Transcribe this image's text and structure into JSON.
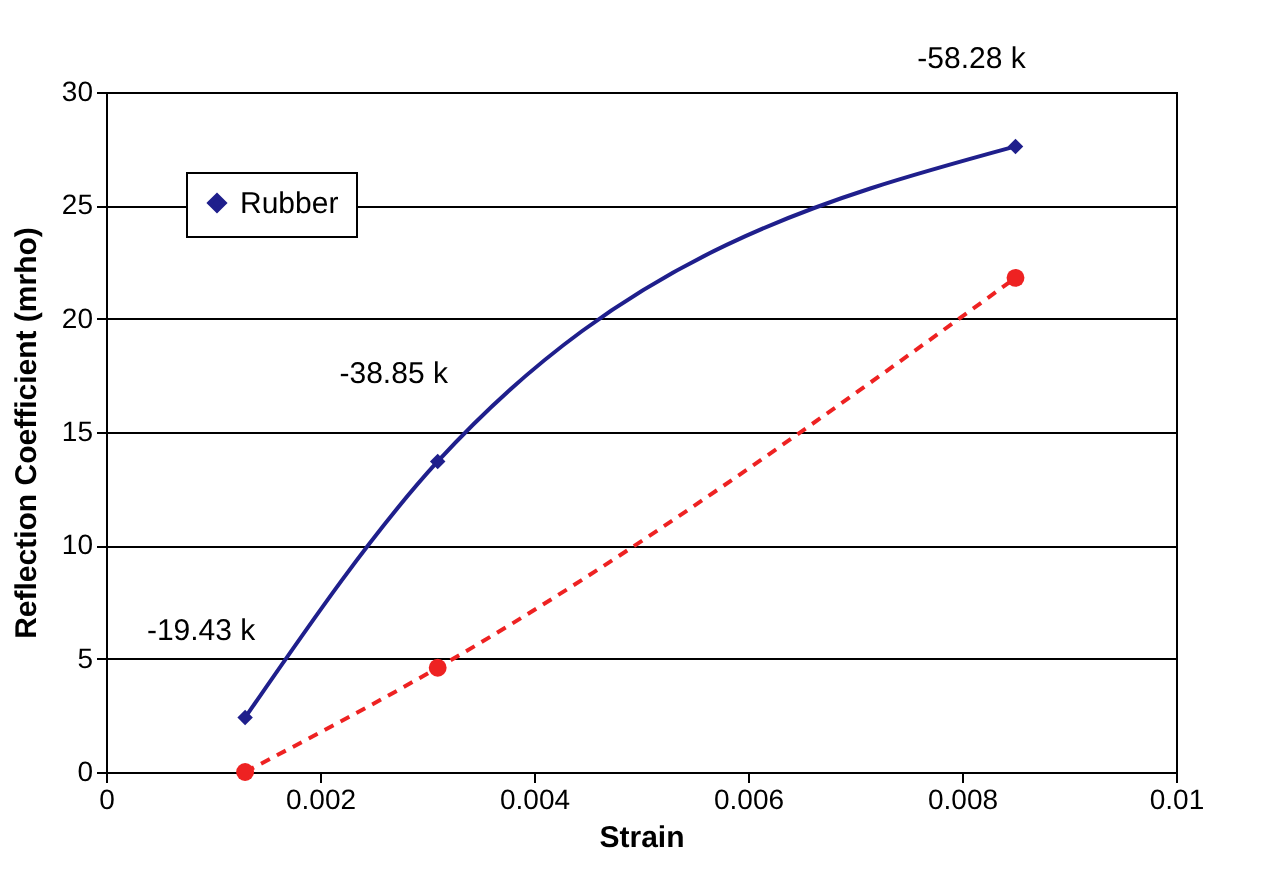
{
  "chart_data": {
    "type": "line",
    "xlabel": "Strain",
    "ylabel": "Reflection Coefficient (mrho)",
    "x": [
      0.0013,
      0.0031,
      0.0085
    ],
    "series": [
      {
        "name": "Rubber",
        "color": "#1f1f8c",
        "values": [
          2.4,
          13.7,
          27.6
        ],
        "marker": "diamond",
        "line_style": "solid"
      },
      {
        "color": "#ee2222",
        "values": [
          0,
          4.6,
          21.8
        ],
        "marker": "circle",
        "line_style": "dashed"
      }
    ],
    "annotations": [
      {
        "text": "-19.43 k",
        "x": 0.0013,
        "y": 2.4
      },
      {
        "text": "-38.85 k",
        "x": 0.0031,
        "y": 13.7
      },
      {
        "text": "-58.28 k",
        "x": 0.0085,
        "y": 27.6
      }
    ],
    "xlim": [
      0,
      0.01
    ],
    "xticks": [
      0,
      0.002,
      0.004,
      0.006,
      0.008,
      0.01
    ],
    "ylim": [
      0,
      30
    ],
    "yticks": [
      0,
      5,
      10,
      15,
      20,
      25,
      30
    ],
    "grid": "y",
    "legend": "top left"
  }
}
